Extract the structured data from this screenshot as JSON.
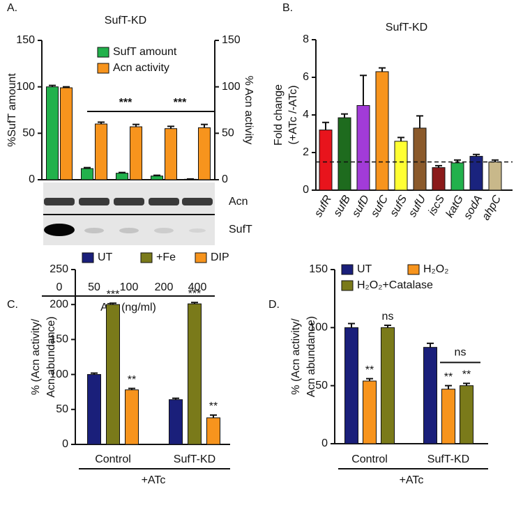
{
  "chart_data": [
    {
      "type": "bar",
      "panel": "A.",
      "title": "SufT-KD",
      "categories": [
        "0",
        "50",
        "100",
        "200",
        "400"
      ],
      "xlabel": "ATc (ng/ml)",
      "ylabel": "%SufT amount",
      "y2label": "% Acn activity",
      "ylim": [
        0,
        150
      ],
      "yticks": [
        0,
        50,
        100,
        150
      ],
      "y2lim": [
        0,
        150
      ],
      "y2ticks": [
        0,
        50,
        100,
        150
      ],
      "series": [
        {
          "name": "SufT amount",
          "color": "#22b14c",
          "values": [
            100,
            12,
            7,
            4,
            0.5
          ],
          "errors": [
            1.5,
            1,
            0.8,
            0.8,
            0.3
          ]
        },
        {
          "name": "Acn activity",
          "color": "#f7941d",
          "values": [
            99,
            60,
            57,
            55,
            56
          ],
          "errors": [
            1,
            2,
            2.5,
            2.5,
            3.5
          ],
          "axis": "y2"
        }
      ],
      "significance": [
        {
          "text": "***",
          "series": 0
        },
        {
          "text": "***",
          "series": 1
        }
      ],
      "blot_labels": [
        "Acn",
        "SufT"
      ]
    },
    {
      "type": "bar",
      "panel": "B.",
      "title": "SufT-KD",
      "ylabel": [
        "Fold change",
        "(+ATc /-ATc)"
      ],
      "categories": [
        "sufR",
        "sufB",
        "sufD",
        "sufC",
        "sufS",
        "sufU",
        "iscS",
        "katG",
        "sodA",
        "ahpC"
      ],
      "values": [
        3.2,
        3.85,
        4.5,
        6.3,
        2.6,
        3.3,
        1.2,
        1.45,
        1.8,
        1.5
      ],
      "errors": [
        0.4,
        0.2,
        1.6,
        0.2,
        0.2,
        0.65,
        0.1,
        0.15,
        0.1,
        0.1
      ],
      "colors": [
        "#e8141c",
        "#1e6b1e",
        "#a23bd8",
        "#f7941d",
        "#ffff33",
        "#8b5a2b",
        "#8b1a1a",
        "#22b14c",
        "#1a237e",
        "#c8b88a"
      ],
      "ylim": [
        0,
        8
      ],
      "yticks": [
        0,
        2,
        4,
        6,
        8
      ],
      "reference_line": 1.5
    },
    {
      "type": "bar",
      "panel": "C.",
      "ylabel": [
        "% (Acn activity/",
        "Acn  abundance)"
      ],
      "categories": [
        "Control",
        "SufT-KD"
      ],
      "xlabel": "+ATc",
      "ylim": [
        0,
        250
      ],
      "yticks": [
        0,
        50,
        100,
        150,
        200,
        250
      ],
      "series": [
        {
          "name": "UT",
          "color": "#1a1f7a",
          "values": [
            100,
            64
          ],
          "errors": [
            2,
            2
          ]
        },
        {
          "name": "+Fe",
          "color": "#7a7a1a",
          "values": [
            200,
            201
          ],
          "errors": [
            2,
            2
          ]
        },
        {
          "name": "DIP",
          "color": "#f7941d",
          "values": [
            78,
            38
          ],
          "errors": [
            2,
            4
          ]
        }
      ],
      "annotations": [
        {
          "text": "***",
          "series": 1,
          "category": 0
        },
        {
          "text": "**",
          "series": 2,
          "category": 0
        },
        {
          "text": "***",
          "series": 1,
          "category": 1
        },
        {
          "text": "**",
          "series": 2,
          "category": 1
        }
      ]
    },
    {
      "type": "bar",
      "panel": "D.",
      "ylabel": [
        "% (Acn activity/",
        "Acn  abundance)"
      ],
      "categories": [
        "Control",
        "SufT-KD"
      ],
      "xlabel": "+ATc",
      "ylim": [
        0,
        150
      ],
      "yticks": [
        0,
        50,
        100,
        150
      ],
      "series": [
        {
          "name": "UT",
          "color": "#1a1f7a",
          "values": [
            100,
            83
          ],
          "errors": [
            3.5,
            3.5
          ]
        },
        {
          "name": "H₂O₂",
          "color": "#f7941d",
          "values": [
            54,
            47
          ],
          "errors": [
            2,
            3
          ]
        },
        {
          "name": "H₂O₂+Catalase",
          "color": "#7a7a1a",
          "values": [
            100,
            50
          ],
          "errors": [
            2,
            2
          ]
        }
      ],
      "annotations": [
        {
          "text": "**",
          "series": 1,
          "category": 0
        },
        {
          "text": "ns",
          "series": 2,
          "category": 0
        },
        {
          "text": "**",
          "series": 1,
          "category": 1
        },
        {
          "text": "**",
          "series": 2,
          "category": 1
        }
      ],
      "bracket": {
        "text": "ns",
        "category": 1,
        "series": [
          1,
          2
        ]
      }
    }
  ]
}
